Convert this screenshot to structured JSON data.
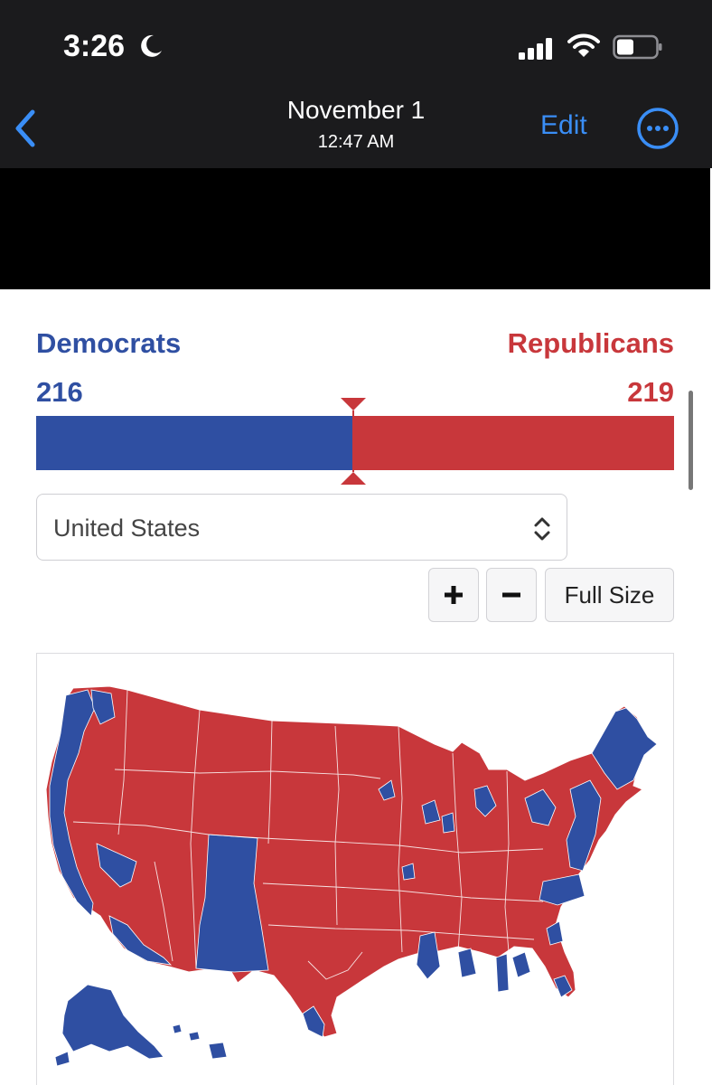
{
  "status_bar": {
    "time": "3:26"
  },
  "nav": {
    "title": "November 1",
    "subtitle": "12:47 AM",
    "edit_label": "Edit"
  },
  "results": {
    "dem_label": "Democrats",
    "rep_label": "Republicans",
    "dem_seats": "216",
    "rep_seats": "219",
    "dem_share": 0.496
  },
  "region_select": {
    "value": "United States"
  },
  "controls": {
    "zoom_in": "+",
    "zoom_out": "−",
    "full_size": "Full Size"
  },
  "colors": {
    "democrat": "#2f4fa2",
    "republican": "#c8373b",
    "accent": "#3a8ef6"
  }
}
